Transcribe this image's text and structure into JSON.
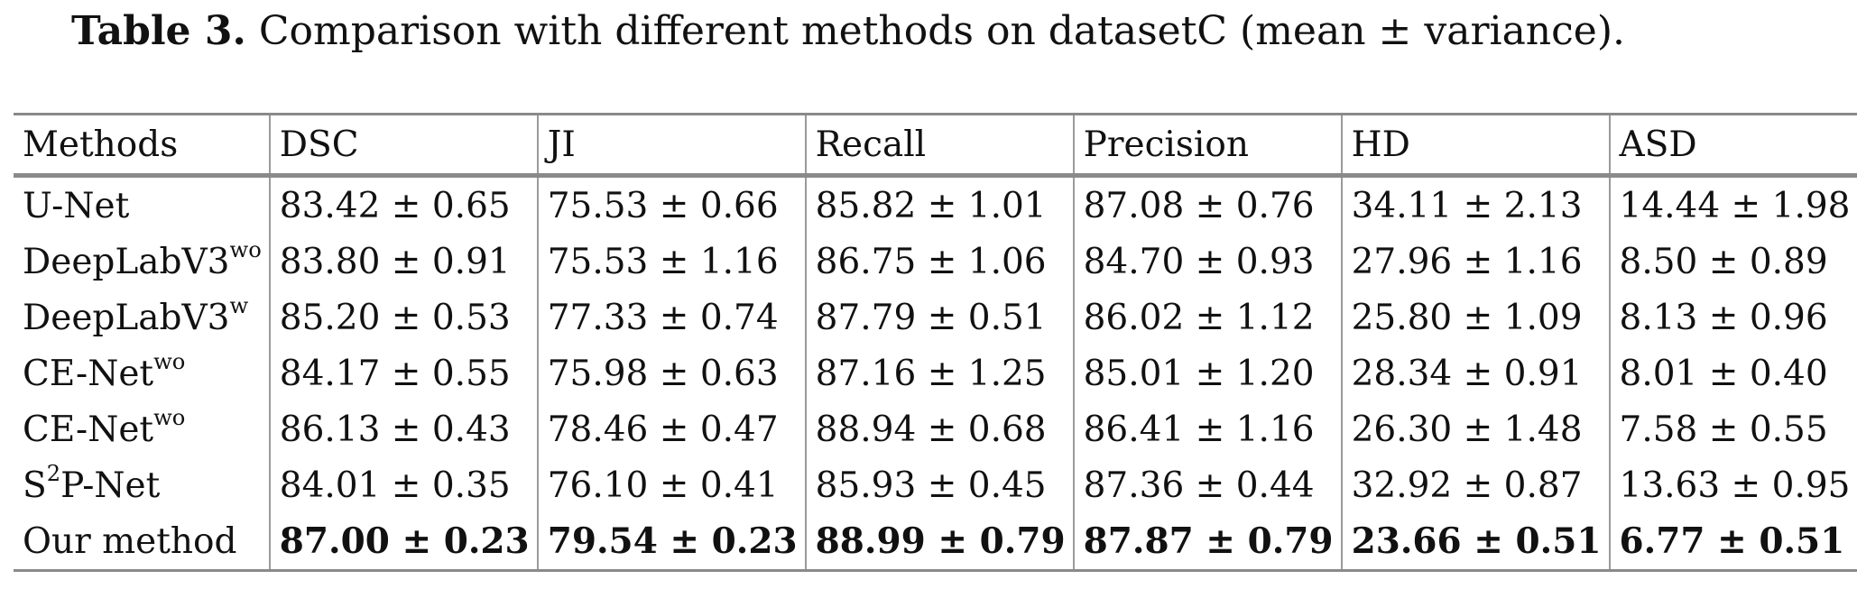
{
  "caption": {
    "label": "Table 3.",
    "text": "Comparison with different methods on datasetC (mean ± variance)."
  },
  "table": {
    "headers": [
      "Methods",
      "DSC",
      "JI",
      "Recall",
      "Precision",
      "HD",
      "ASD"
    ],
    "rows": [
      {
        "method": "U-Net",
        "method_sup": "",
        "method_suffix": "",
        "values": [
          "83.42 ± 0.65",
          "75.53 ± 0.66",
          "85.82 ± 1.01",
          "87.08 ± 0.76",
          "34.11 ± 2.13",
          "14.44 ± 1.98"
        ]
      },
      {
        "method": "DeepLabV3",
        "method_sup": "wo",
        "method_suffix": "",
        "values": [
          "83.80 ± 0.91",
          "75.53 ± 1.16",
          "86.75 ± 1.06",
          "84.70 ± 0.93",
          "27.96 ± 1.16",
          "8.50 ± 0.89"
        ]
      },
      {
        "method": "DeepLabV3",
        "method_sup": "w",
        "method_suffix": "",
        "values": [
          "85.20 ± 0.53",
          "77.33 ± 0.74",
          "87.79 ± 0.51",
          "86.02 ± 1.12",
          "25.80 ± 1.09",
          "8.13 ± 0.96"
        ]
      },
      {
        "method": "CE-Net",
        "method_sup": "wo",
        "method_suffix": "",
        "values": [
          "84.17 ± 0.55",
          "75.98 ± 0.63",
          "87.16 ± 1.25",
          "85.01 ± 1.20",
          "28.34 ± 0.91",
          "8.01 ± 0.40"
        ]
      },
      {
        "method": "CE-Net",
        "method_sup": "wo",
        "method_suffix": "",
        "values": [
          "86.13 ± 0.43",
          "78.46 ± 0.47",
          "88.94 ± 0.68",
          "86.41 ± 1.16",
          "26.30 ± 1.48",
          "7.58 ± 0.55"
        ]
      },
      {
        "method": "S",
        "method_sup": "2",
        "method_suffix": "P-Net",
        "values": [
          "84.01 ± 0.35",
          "76.10 ± 0.41",
          "85.93 ± 0.45",
          "87.36 ± 0.44",
          "32.92 ± 0.87",
          "13.63 ± 0.95"
        ]
      },
      {
        "method": "Our method",
        "method_sup": "",
        "method_suffix": "",
        "values": [
          "87.00 ± 0.23",
          "79.54 ± 0.23",
          "88.99 ± 0.79",
          "87.87 ± 0.79",
          "23.66 ± 0.51",
          "6.77 ± 0.51"
        ],
        "best": true
      }
    ]
  }
}
